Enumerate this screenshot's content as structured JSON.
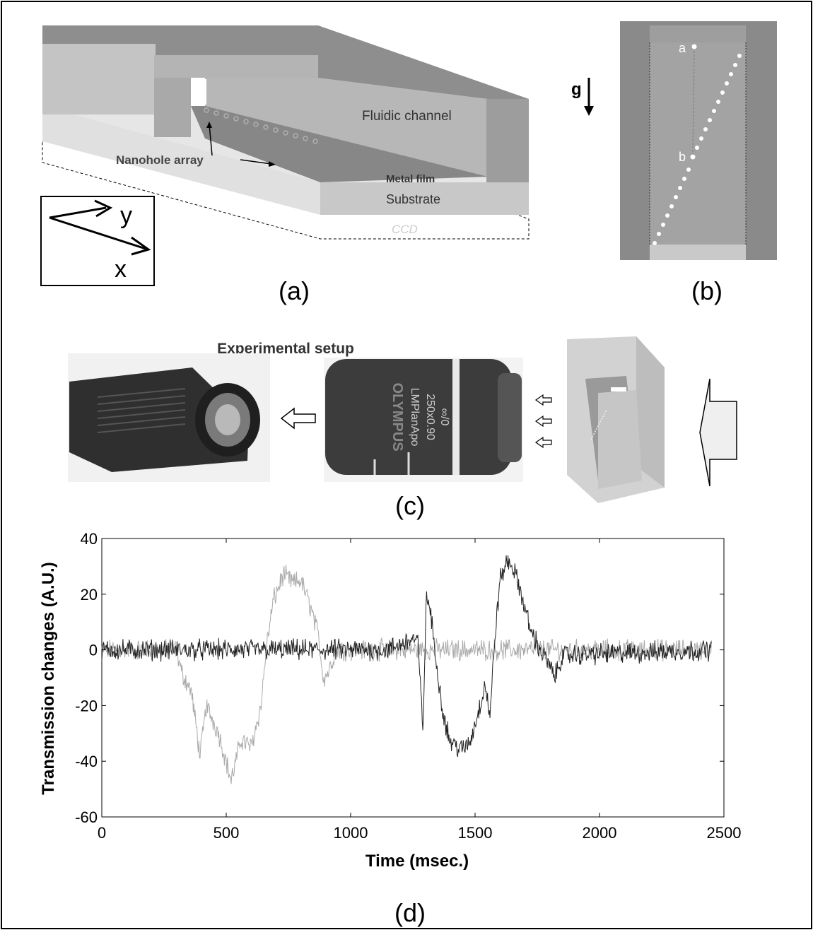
{
  "panels": {
    "a": {
      "caption": "(a)",
      "fluidic_channel": "Fluidic channel",
      "nanohole_array": "Nanohole array",
      "metal_film": "Metal film",
      "substrate": "Substrate",
      "ccd": "CCD",
      "axis_y": "y",
      "axis_x": "x"
    },
    "b": {
      "caption": "(b)",
      "gravity": "g",
      "point_a": "a",
      "point_b": "b"
    },
    "c": {
      "caption": "(c)",
      "title": "Experimental setup",
      "lens_brand": "OLYMPUS",
      "lens_model": "LMPlanApo",
      "lens_spec": "250x0.90",
      "lens_infinity": "∞/0"
    },
    "d": {
      "caption": "(d)"
    }
  },
  "chart_data": {
    "type": "line",
    "xlabel": "Time (msec.)",
    "ylabel": "Transmission changes (A.U.)",
    "xlim": [
      0,
      2500
    ],
    "ylim": [
      -60,
      40
    ],
    "xticks": [
      0,
      500,
      1000,
      1500,
      2000,
      2500
    ],
    "yticks": [
      40,
      20,
      0,
      -20,
      -40,
      -60
    ],
    "grid": false,
    "noise_amplitude": 3,
    "series": [
      {
        "color": "#aaaaaa",
        "envelope_x": [
          0,
          300,
          320,
          360,
          395,
          420,
          470,
          520,
          560,
          600,
          640,
          660,
          690,
          730,
          770,
          800,
          840,
          870,
          890,
          910,
          940,
          2450
        ],
        "envelope_y": [
          0,
          0,
          -8,
          -15,
          -38,
          -20,
          -30,
          -47,
          -32,
          -35,
          -20,
          0,
          18,
          27,
          24,
          25,
          15,
          5,
          -10,
          -8,
          0,
          0
        ]
      },
      {
        "color": "#222222",
        "envelope_x": [
          0,
          1150,
          1200,
          1250,
          1270,
          1290,
          1305,
          1320,
          1345,
          1370,
          1400,
          1450,
          1480,
          1520,
          1540,
          1560,
          1580,
          1600,
          1630,
          1650,
          1680,
          1720,
          1760,
          1790,
          1820,
          1850,
          2450
        ],
        "envelope_y": [
          0,
          0,
          2,
          4,
          3,
          -28,
          20,
          14,
          -5,
          -22,
          -33,
          -36,
          -33,
          -20,
          -12,
          -24,
          5,
          25,
          32,
          30,
          22,
          8,
          0,
          -4,
          -10,
          -2,
          0
        ]
      }
    ]
  }
}
